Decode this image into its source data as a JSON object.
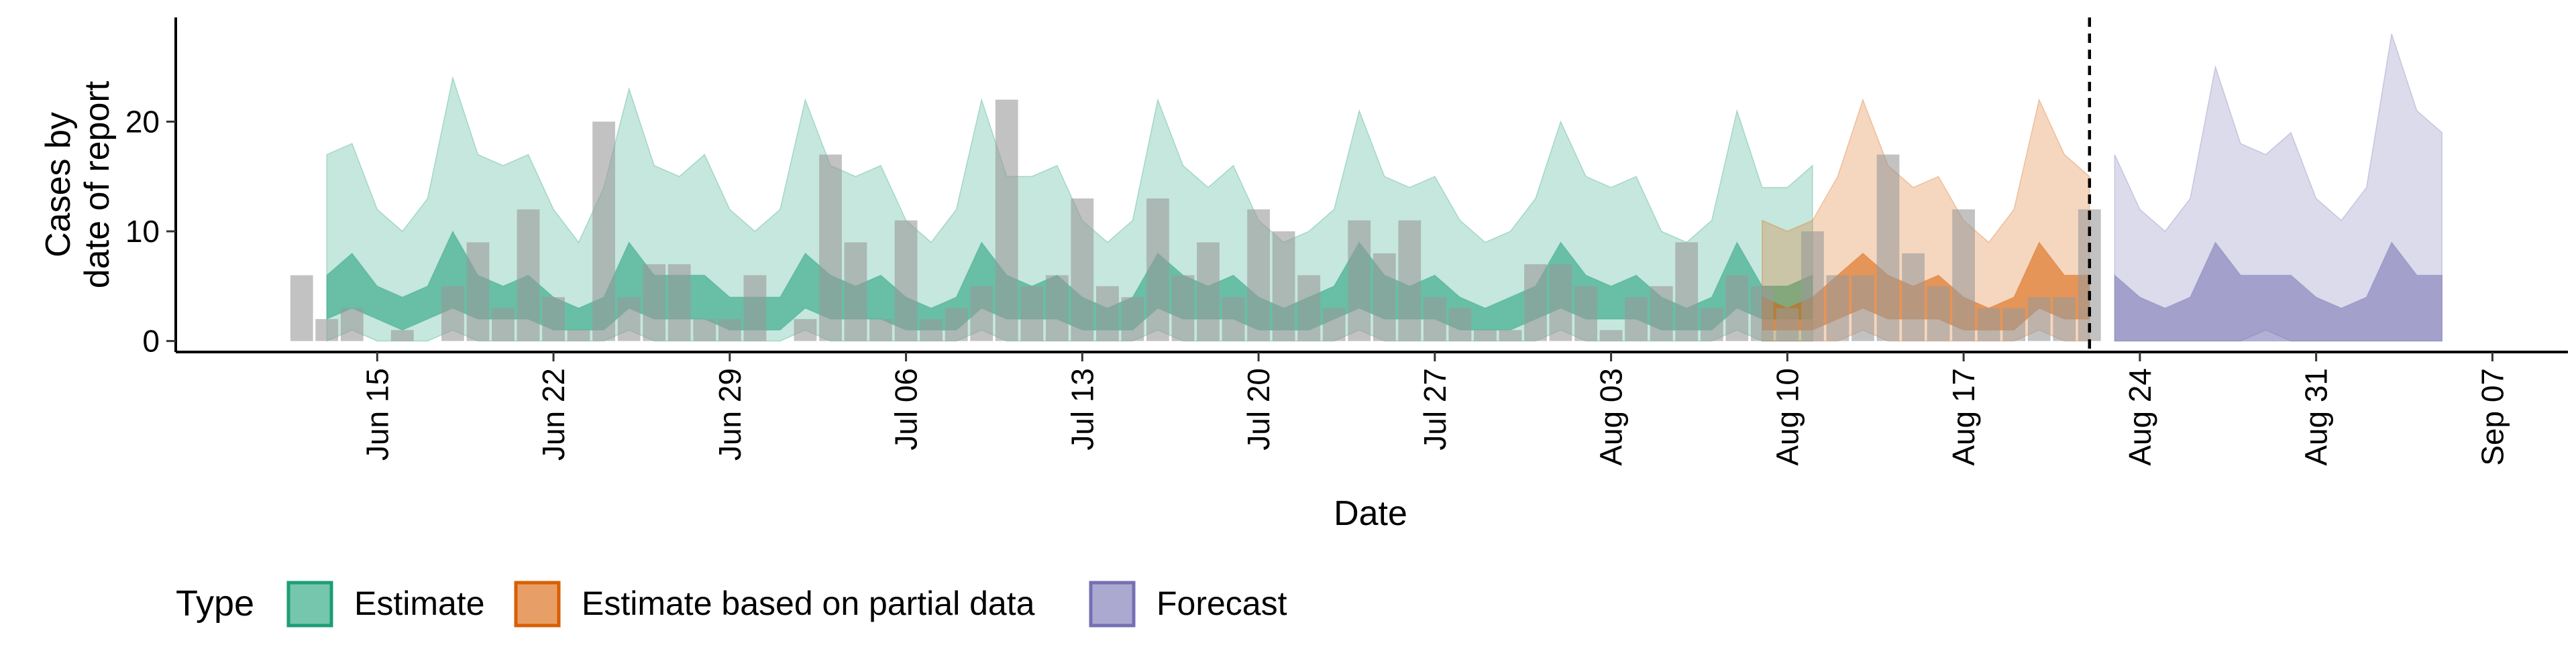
{
  "chart_data": {
    "type": "area",
    "ylabel": [
      "Cases by",
      "date of report"
    ],
    "xlabel": "Date",
    "ylim": [
      -1,
      29.5
    ],
    "y_ticks": [
      0,
      10,
      20
    ],
    "x_start": "2020-06-12",
    "x_tick_labels": [
      "Jun 15",
      "Jun 22",
      "Jun 29",
      "Jul 06",
      "Jul 13",
      "Jul 20",
      "Jul 27",
      "Aug 03",
      "Aug 10",
      "Aug 17",
      "Aug 24",
      "Aug 31",
      "Sep 07"
    ],
    "x_tick_dates": [
      "2020-06-15",
      "2020-06-22",
      "2020-06-29",
      "2020-07-06",
      "2020-07-13",
      "2020-07-20",
      "2020-07-27",
      "2020-08-03",
      "2020-08-10",
      "2020-08-17",
      "2020-08-24",
      "2020-08-31",
      "2020-09-07"
    ],
    "x_range": [
      "2020-06-07",
      "2020-09-10"
    ],
    "forecast_start_line": "2020-08-22",
    "grid": false,
    "legend": {
      "title": "Type",
      "position": "bottom",
      "items": [
        "Estimate",
        "Estimate based on partial data",
        "Forecast"
      ]
    },
    "colors": {
      "Estimate": "#1b9e77",
      "Estimate based on partial data": "#d95f02",
      "Forecast": "#7570b3",
      "bars": "#9a9a9a"
    },
    "reported_cases": {
      "start": "2020-06-12",
      "values": [
        6,
        2,
        3,
        0,
        1,
        0,
        5,
        9,
        3,
        12,
        4,
        1,
        20,
        4,
        7,
        7,
        2,
        2,
        6,
        0,
        2,
        17,
        9,
        2,
        11,
        2,
        3,
        5,
        22,
        5,
        6,
        13,
        5,
        4,
        13,
        6,
        9,
        4,
        12,
        10,
        6,
        3,
        11,
        8,
        11,
        4,
        3,
        1,
        1,
        7,
        7,
        5,
        1,
        4,
        5,
        9,
        3,
        6,
        5,
        3,
        10,
        6,
        6,
        17,
        8,
        5,
        12,
        3,
        3,
        4,
        4,
        12
      ]
    },
    "series": [
      {
        "name": "Estimate",
        "start": "2020-06-13",
        "upper90": [
          17,
          18,
          12,
          10,
          13,
          24,
          17,
          16,
          17,
          12,
          9,
          14,
          23,
          16,
          15,
          17,
          12,
          10,
          12,
          22,
          16,
          15,
          16,
          11,
          9,
          12,
          22,
          15,
          15,
          16,
          11,
          9,
          11,
          22,
          16,
          14,
          16,
          11,
          9,
          10,
          12,
          21,
          15,
          14,
          15,
          11,
          9,
          10,
          13,
          20,
          15,
          14,
          15,
          10,
          9,
          11,
          21,
          14,
          14,
          16
        ],
        "upper50": [
          6,
          8,
          5,
          4,
          5,
          10,
          6,
          5,
          6,
          4,
          3,
          4,
          9,
          6,
          6,
          6,
          4,
          4,
          4,
          8,
          6,
          5,
          6,
          4,
          3,
          4,
          9,
          6,
          5,
          6,
          4,
          3,
          4,
          8,
          6,
          5,
          6,
          4,
          3,
          4,
          5,
          9,
          6,
          5,
          6,
          4,
          3,
          4,
          5,
          9,
          6,
          5,
          6,
          4,
          3,
          4,
          9,
          5,
          5,
          6
        ],
        "lower50": [
          2,
          3,
          2,
          1,
          2,
          3,
          2,
          2,
          2,
          1,
          1,
          1,
          3,
          2,
          2,
          2,
          1,
          1,
          1,
          3,
          2,
          2,
          2,
          1,
          1,
          1,
          3,
          2,
          2,
          2,
          1,
          1,
          1,
          3,
          2,
          2,
          2,
          1,
          1,
          1,
          2,
          3,
          2,
          2,
          2,
          1,
          1,
          1,
          2,
          3,
          2,
          2,
          2,
          1,
          1,
          1,
          3,
          2,
          2,
          2
        ],
        "lower90": [
          0,
          1,
          0,
          0,
          0,
          1,
          0,
          0,
          0,
          0,
          0,
          0,
          1,
          0,
          0,
          0,
          0,
          0,
          0,
          1,
          0,
          0,
          0,
          0,
          0,
          0,
          1,
          0,
          0,
          0,
          0,
          0,
          0,
          1,
          0,
          0,
          0,
          0,
          0,
          0,
          0,
          1,
          0,
          0,
          0,
          0,
          0,
          0,
          0,
          1,
          0,
          0,
          0,
          0,
          0,
          0,
          1,
          0,
          0,
          0
        ]
      },
      {
        "name": "Estimate based on partial data",
        "start": "2020-08-09",
        "upper90": [
          11,
          10,
          11,
          15,
          22,
          16,
          14,
          15,
          11,
          9,
          12,
          22,
          17,
          15
        ],
        "upper50": [
          4,
          3,
          4,
          6,
          8,
          6,
          5,
          6,
          4,
          3,
          4,
          9,
          6,
          6
        ],
        "lower50": [
          1,
          1,
          1,
          2,
          3,
          2,
          2,
          2,
          1,
          1,
          1,
          3,
          2,
          2
        ],
        "lower90": [
          0,
          0,
          0,
          0,
          1,
          0,
          0,
          0,
          0,
          0,
          0,
          1,
          0,
          0
        ]
      },
      {
        "name": "Forecast",
        "start": "2020-08-23",
        "upper90": [
          17,
          12,
          10,
          13,
          25,
          18,
          17,
          19,
          13,
          11,
          14,
          28,
          21,
          19
        ],
        "upper50": [
          6,
          4,
          3,
          4,
          9,
          6,
          6,
          6,
          4,
          3,
          4,
          9,
          6,
          6
        ],
        "lower50": [
          0,
          0,
          0,
          0,
          0,
          0,
          0,
          0,
          0,
          0,
          0,
          0,
          0,
          0
        ],
        "lower90": [
          0,
          0,
          0,
          0,
          0,
          0,
          1,
          0,
          0,
          0,
          0,
          0,
          0,
          0
        ]
      }
    ]
  }
}
